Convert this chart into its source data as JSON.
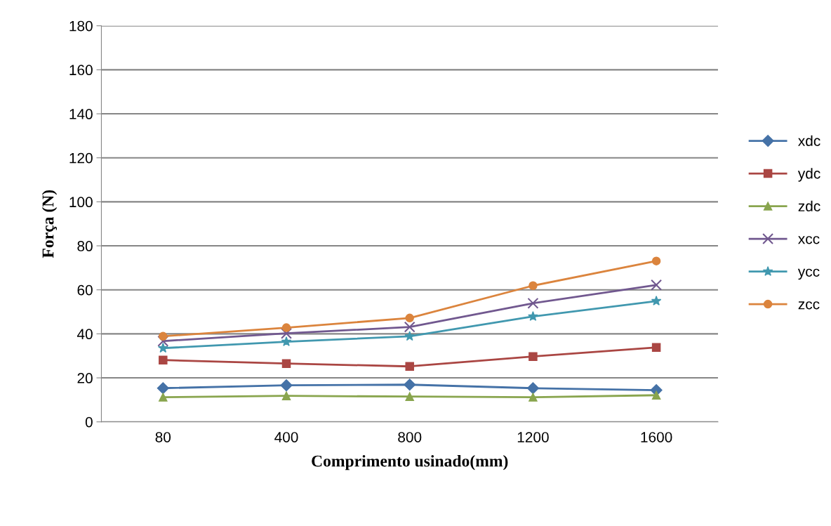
{
  "chart_data": {
    "type": "line",
    "xlabel": "Comprimento usinado(mm)",
    "ylabel": "Força (N)",
    "categories": [
      "80",
      "400",
      "800",
      "1200",
      "1600"
    ],
    "series": [
      {
        "name": "xdc",
        "color": "#4572a7",
        "marker": "diamond",
        "values": [
          15.3,
          16.6,
          16.9,
          15.3,
          14.4
        ]
      },
      {
        "name": "ydc",
        "color": "#aa4643",
        "marker": "square",
        "values": [
          28.1,
          26.5,
          25.2,
          29.7,
          33.8
        ]
      },
      {
        "name": "zdc",
        "color": "#89a54e",
        "marker": "triangle",
        "values": [
          11.2,
          11.8,
          11.5,
          11.2,
          12.1
        ]
      },
      {
        "name": "xcc",
        "color": "#71588f",
        "marker": "cross",
        "values": [
          36.7,
          40.2,
          43.1,
          53.9,
          62.2
        ]
      },
      {
        "name": "ycc",
        "color": "#4198af",
        "marker": "star",
        "values": [
          33.5,
          36.4,
          38.9,
          47.9,
          54.9
        ]
      },
      {
        "name": "zcc",
        "color": "#db843d",
        "marker": "circle",
        "values": [
          38.9,
          42.8,
          47.2,
          61.9,
          73.1
        ]
      }
    ],
    "ylim": [
      0,
      180
    ],
    "yticks": [
      0,
      20,
      40,
      60,
      80,
      100,
      120,
      140,
      160,
      180
    ],
    "grid": "y",
    "legend": "right",
    "line_style": "solid"
  }
}
